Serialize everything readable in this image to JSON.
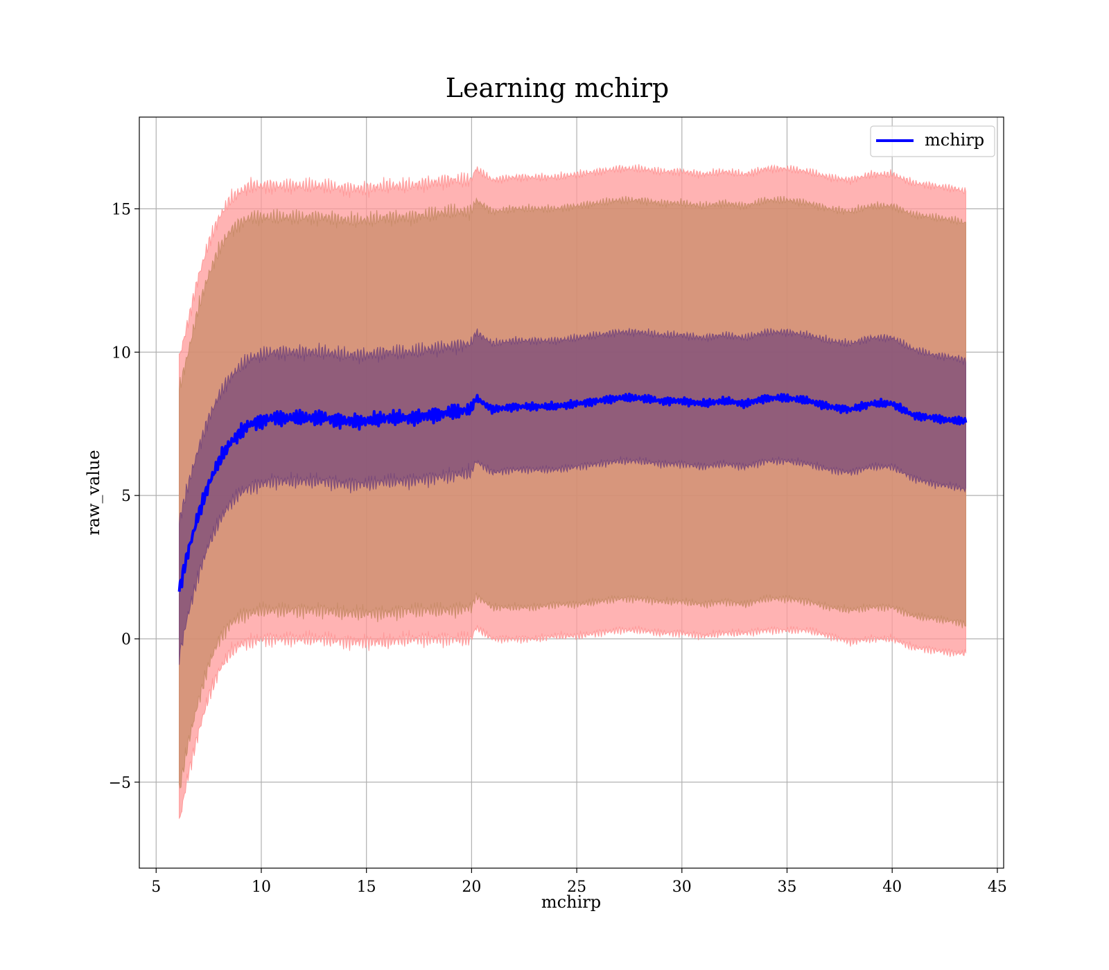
{
  "chart_data": {
    "type": "line",
    "title": "Learning mchirp",
    "xlabel": "mchirp",
    "ylabel": "raw_value",
    "xlim": [
      4.2,
      45.3
    ],
    "ylim": [
      -8.0,
      18.2
    ],
    "x_ticks": [
      5,
      10,
      15,
      20,
      25,
      30,
      35,
      40,
      45
    ],
    "x_tick_labels": [
      "5",
      "10",
      "15",
      "20",
      "25",
      "30",
      "35",
      "40",
      "45"
    ],
    "y_ticks": [
      -5,
      0,
      5,
      10,
      15
    ],
    "y_tick_labels": [
      "−5",
      "0",
      "5",
      "10",
      "15"
    ],
    "grid": true,
    "legend_position": "top-right",
    "series": [
      {
        "name": "mchirp",
        "color": "#0000ff",
        "x": [
          6.1,
          6.5,
          7.0,
          7.5,
          8.0,
          8.5,
          9.0,
          9.5,
          10.0,
          10.5,
          11,
          12,
          13,
          14,
          15,
          16,
          17,
          18,
          19,
          20,
          20.2,
          21,
          22,
          23,
          24,
          25,
          26,
          27,
          28,
          29,
          30,
          31,
          32,
          33,
          34,
          35,
          36,
          37,
          38,
          39,
          40,
          41,
          42,
          43,
          43.5
        ],
        "y": [
          1.7,
          3.0,
          4.3,
          5.4,
          6.2,
          6.8,
          7.2,
          7.5,
          7.6,
          7.7,
          7.7,
          7.7,
          7.7,
          7.6,
          7.6,
          7.7,
          7.7,
          7.8,
          7.9,
          8.0,
          8.4,
          8.0,
          8.1,
          8.1,
          8.1,
          8.2,
          8.3,
          8.4,
          8.4,
          8.3,
          8.3,
          8.2,
          8.3,
          8.2,
          8.4,
          8.4,
          8.3,
          8.1,
          8.0,
          8.2,
          8.2,
          7.8,
          7.7,
          7.6,
          7.6
        ]
      }
    ],
    "bands": [
      {
        "label": "outer",
        "color": "#ff9999",
        "lower": [
          -6.4,
          -4.8,
          -3.3,
          -2.0,
          -1.1,
          -0.5,
          -0.2,
          -0.1,
          0.0,
          0.0,
          0.0,
          0.0,
          0.0,
          -0.1,
          -0.1,
          -0.1,
          0.0,
          0.0,
          0.0,
          0.0,
          0.4,
          0.0,
          0.0,
          0.0,
          0.1,
          0.1,
          0.2,
          0.3,
          0.3,
          0.2,
          0.2,
          0.1,
          0.2,
          0.2,
          0.3,
          0.3,
          0.3,
          0.1,
          -0.1,
          0.0,
          0.0,
          -0.3,
          -0.4,
          -0.5,
          -0.5
        ],
        "upper": [
          9.8,
          11.0,
          12.6,
          13.8,
          14.7,
          15.3,
          15.6,
          15.8,
          15.8,
          15.8,
          15.8,
          15.8,
          15.8,
          15.7,
          15.7,
          15.8,
          15.8,
          15.9,
          16.0,
          16.0,
          16.4,
          16.0,
          16.1,
          16.1,
          16.1,
          16.2,
          16.3,
          16.4,
          16.4,
          16.3,
          16.3,
          16.2,
          16.3,
          16.2,
          16.4,
          16.4,
          16.3,
          16.1,
          16.0,
          16.2,
          16.2,
          15.9,
          15.8,
          15.7,
          15.6
        ]
      },
      {
        "label": "middle",
        "color": "#c98c6a",
        "lower": [
          -5.3,
          -3.7,
          -2.2,
          -0.9,
          0.0,
          0.5,
          0.8,
          0.9,
          1.0,
          1.0,
          1.0,
          1.0,
          1.0,
          0.9,
          0.9,
          0.9,
          1.0,
          1.0,
          1.0,
          1.1,
          1.5,
          1.1,
          1.1,
          1.1,
          1.2,
          1.2,
          1.3,
          1.4,
          1.4,
          1.3,
          1.3,
          1.2,
          1.3,
          1.2,
          1.4,
          1.4,
          1.3,
          1.1,
          1.0,
          1.1,
          1.1,
          0.8,
          0.7,
          0.6,
          0.5
        ],
        "upper": [
          8.7,
          9.9,
          11.5,
          12.7,
          13.6,
          14.2,
          14.5,
          14.7,
          14.7,
          14.7,
          14.7,
          14.7,
          14.7,
          14.6,
          14.6,
          14.7,
          14.7,
          14.8,
          14.9,
          14.9,
          15.3,
          14.9,
          15.0,
          15.0,
          15.0,
          15.1,
          15.2,
          15.3,
          15.3,
          15.2,
          15.2,
          15.1,
          15.2,
          15.1,
          15.3,
          15.3,
          15.2,
          15.0,
          14.9,
          15.1,
          15.1,
          14.8,
          14.7,
          14.6,
          14.5
        ]
      },
      {
        "label": "inner",
        "color": "#7a4a7a",
        "lower": [
          -0.6,
          0.8,
          2.2,
          3.3,
          4.1,
          4.7,
          5.1,
          5.3,
          5.4,
          5.5,
          5.5,
          5.5,
          5.5,
          5.4,
          5.4,
          5.5,
          5.5,
          5.6,
          5.7,
          5.8,
          6.2,
          5.8,
          5.9,
          5.9,
          5.9,
          6.0,
          6.1,
          6.2,
          6.2,
          6.1,
          6.1,
          6.0,
          6.1,
          6.0,
          6.2,
          6.2,
          6.1,
          5.9,
          5.8,
          6.0,
          6.0,
          5.6,
          5.4,
          5.3,
          5.2
        ],
        "upper": [
          4.1,
          5.3,
          6.6,
          7.7,
          8.5,
          9.1,
          9.5,
          9.8,
          9.9,
          10.0,
          10.0,
          10.0,
          10.0,
          9.9,
          9.9,
          10.0,
          10.0,
          10.1,
          10.2,
          10.3,
          10.7,
          10.3,
          10.4,
          10.4,
          10.4,
          10.5,
          10.6,
          10.7,
          10.7,
          10.6,
          10.6,
          10.5,
          10.6,
          10.5,
          10.7,
          10.7,
          10.6,
          10.4,
          10.3,
          10.5,
          10.5,
          10.1,
          9.9,
          9.8,
          9.7
        ]
      }
    ]
  }
}
